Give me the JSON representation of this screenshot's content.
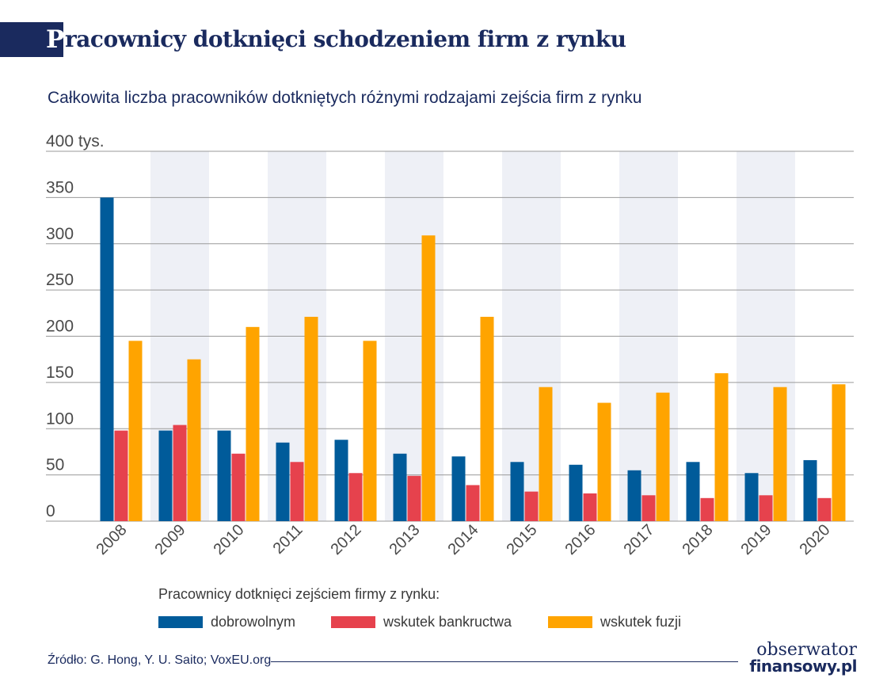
{
  "header": {
    "title_initial": "P",
    "title_rest": "racownicy dotknięci schodzeniem firm z rynku",
    "subtitle": "Całkowita liczba pracowników dotkniętych różnymi rodzajami zejścia firm z rynku"
  },
  "legend": {
    "title": "Pracownicy dotknięci zejściem firmy z rynku:",
    "position": "bottom"
  },
  "footer": {
    "source": "Źródło: G. Hong, Y. U. Saito; VoxEU.org",
    "logo_top": "obserwator",
    "logo_bottom": "finansowy.pl"
  },
  "colors": {
    "navy": "#1a2a5e",
    "band": "#eef0f6",
    "grid": "#9a9a9a"
  },
  "chart_data": {
    "type": "bar",
    "categories": [
      "2008",
      "2009",
      "2010",
      "2011",
      "2012",
      "2013",
      "2014",
      "2015",
      "2016",
      "2017",
      "2018",
      "2019",
      "2020"
    ],
    "series": [
      {
        "name": "dobrowolnym",
        "color": "#005b9a",
        "values": [
          350,
          98,
          98,
          85,
          88,
          73,
          70,
          64,
          61,
          55,
          64,
          52,
          66
        ]
      },
      {
        "name": "wskutek bankructwa",
        "color": "#e6424d",
        "values": [
          98,
          104,
          73,
          64,
          52,
          49,
          39,
          32,
          30,
          28,
          25,
          28,
          25
        ]
      },
      {
        "name": "wskutek fuzji",
        "color": "#ffa400",
        "values": [
          195,
          175,
          210,
          221,
          195,
          309,
          221,
          145,
          128,
          139,
          160,
          145,
          148
        ]
      }
    ],
    "ylim": [
      0,
      400
    ],
    "yticks": [
      0,
      50,
      100,
      150,
      200,
      250,
      300,
      350,
      400
    ],
    "ytick_labels": [
      "0",
      "50",
      "100",
      "150",
      "200",
      "250",
      "300",
      "350",
      "400 tys."
    ],
    "grid": true,
    "alternating_bands": true
  }
}
